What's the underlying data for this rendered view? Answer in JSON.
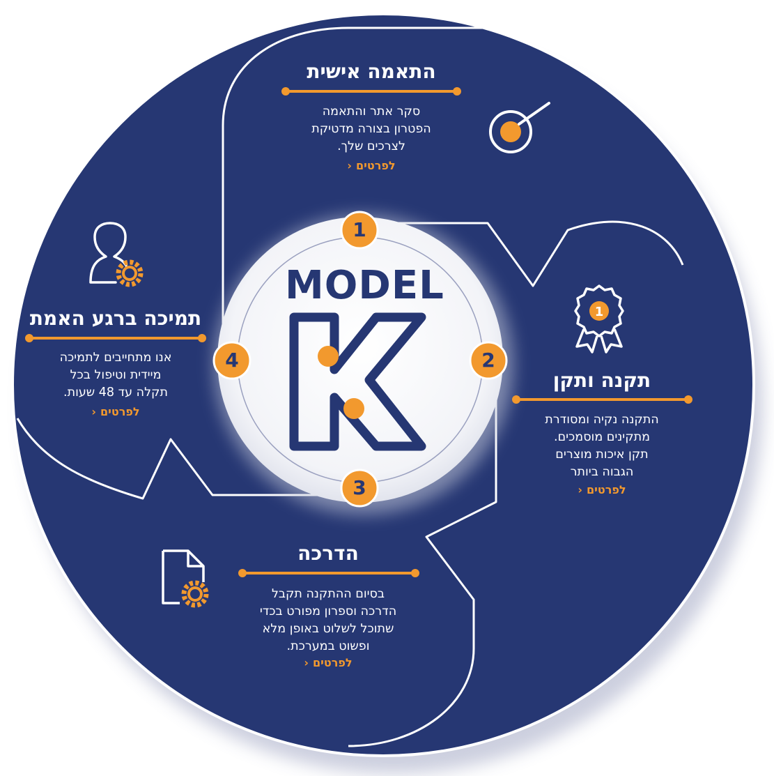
{
  "logo": {
    "word": "MODEL",
    "letter": "K"
  },
  "colors": {
    "navy": "#263773",
    "orange": "#f2992e",
    "white": "#ffffff"
  },
  "steps": [
    {
      "number": "1",
      "title": "התאמה אישית",
      "lines": [
        "סקר אתר והתאמה",
        "הפטרון בצורה מדטיקת",
        "לצרכים שלך."
      ],
      "more": "לפרטים",
      "icon": "target-icon"
    },
    {
      "number": "2",
      "title": "תקנה ותקן",
      "lines": [
        "התקנה נקיה ומסודרת",
        "מתקינים מוסמכים.",
        "תקן איכות מוצרים",
        "הגבוה ביותר"
      ],
      "more": "לפרטים",
      "icon": "award-ribbon-icon"
    },
    {
      "number": "3",
      "title": "הדרכה",
      "lines": [
        "בסיום ההתקנה תקבל",
        "הדרכה וספרון מפורט בכדי",
        "שתוכל לשלוט באופן מלא",
        "ופשוט במערכת."
      ],
      "more": "לפרטים",
      "icon": "document-gear-icon"
    },
    {
      "number": "4",
      "title": "תמיכה ברגע האמת",
      "lines": [
        "אנו מתחייבים לתמיכה",
        "מיידית וטיפול בכל",
        "תקלה עד 48 שעות."
      ],
      "more": "לפרטים",
      "icon": "user-gear-icon"
    }
  ]
}
